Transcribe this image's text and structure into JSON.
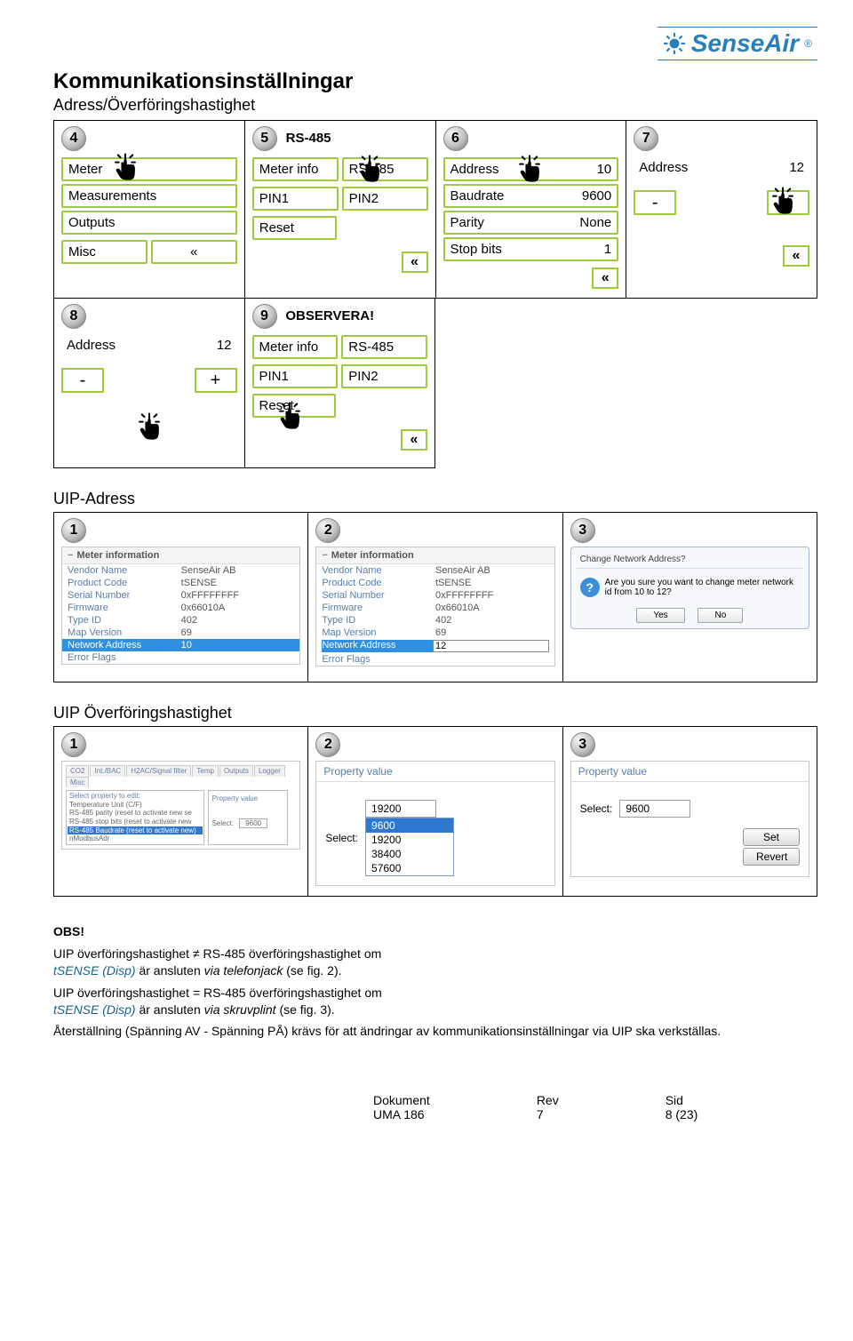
{
  "brand": {
    "name": "SenseAir",
    "reg": "®"
  },
  "title": "Kommunikationsinställningar",
  "subtitle": "Adress/Överföringshastighet",
  "panels_r1": {
    "p4": {
      "badge": "4",
      "rows": [
        "Meter",
        "Measurements",
        "Outputs"
      ],
      "last": {
        "left": "Misc",
        "right": "«"
      }
    },
    "p5": {
      "badge": "5",
      "badge_label": "RS-485",
      "pairs": [
        [
          "Meter info",
          "RS-485"
        ],
        [
          "PIN1",
          "PIN2"
        ]
      ],
      "single": "Reset",
      "back": "«"
    },
    "p6": {
      "badge": "6",
      "rows": [
        [
          "Address",
          "10"
        ],
        [
          "Baudrate",
          "9600"
        ],
        [
          "Parity",
          "None"
        ],
        [
          "Stop bits",
          "1"
        ]
      ],
      "back": "«"
    },
    "p7": {
      "badge": "7",
      "rows": [
        [
          "Address",
          "12"
        ]
      ],
      "adj": [
        "-",
        "+"
      ],
      "back": "«"
    }
  },
  "panels_r2": {
    "p8": {
      "badge": "8",
      "rows": [
        [
          "Address",
          "12"
        ]
      ],
      "adj": [
        "-",
        "+"
      ]
    },
    "p9": {
      "badge": "9",
      "badge_label": "OBSERVERA!",
      "pairs": [
        [
          "Meter info",
          "RS-485"
        ],
        [
          "PIN1",
          "PIN2"
        ]
      ],
      "single": "Reset",
      "back": "«"
    }
  },
  "uip_address": {
    "title": "UIP-Adress",
    "cells": {
      "c1": {
        "badge": "1",
        "meter_title": "Meter information",
        "rows": [
          [
            "Vendor Name",
            "SenseAir AB"
          ],
          [
            "Product Code",
            "tSENSE"
          ],
          [
            "Serial Number",
            "0xFFFFFFFF"
          ],
          [
            "Firmware",
            "0x66010A"
          ],
          [
            "Type ID",
            "402"
          ],
          [
            "Map Version",
            "69"
          ],
          [
            "Network Address",
            "10"
          ],
          [
            "Error Flags",
            ""
          ]
        ],
        "highlight_index": 6
      },
      "c2": {
        "badge": "2",
        "meter_title": "Meter information",
        "rows": [
          [
            "Vendor Name",
            "SenseAir AB"
          ],
          [
            "Product Code",
            "tSENSE"
          ],
          [
            "Serial Number",
            "0xFFFFFFFF"
          ],
          [
            "Firmware",
            "0x66010A"
          ],
          [
            "Type ID",
            "402"
          ],
          [
            "Map Version",
            "69"
          ],
          [
            "Network Address",
            "12"
          ],
          [
            "Error Flags",
            ""
          ]
        ],
        "highlight_index": 6,
        "edit_mode": true
      },
      "c3": {
        "badge": "3",
        "dialog": {
          "title": "Change Network Address?",
          "msg": "Are you sure you want to change meter network id from 10 to 12?",
          "yes": "Yes",
          "no": "No"
        }
      }
    }
  },
  "uip_rate": {
    "title": "UIP Överföringshastighet",
    "cells": {
      "c1": {
        "badge": "1",
        "tabs": [
          "CO2",
          "Int./BAC",
          "H2AC/Signal filter",
          "Temp",
          "Outputs",
          "Logger",
          "Misc"
        ],
        "list_label": "Select property to edit:",
        "list": [
          "Temperature Unit (C/F)",
          "RS-485 parity (reset to activate new se",
          "RS-485 stop bits (reset to activate new",
          "RS-485 Baudrate (reset to activate new)",
          "nModbusAdr"
        ],
        "list_hl": 3,
        "pv": "Property value",
        "select_label": "Select:",
        "select_value": "9600"
      },
      "c2": {
        "badge": "2",
        "pv": "Property value",
        "select_label": "Select:",
        "select_value": "19200",
        "options": [
          "9600",
          "19200",
          "38400",
          "57600"
        ],
        "hl": 0
      },
      "c3": {
        "badge": "3",
        "pv": "Property value",
        "select_label": "Select:",
        "select_value": "9600",
        "set": "Set",
        "revert": "Revert"
      }
    }
  },
  "text": {
    "obs": "OBS!",
    "l1a": "UIP överföringshastighet ≠ RS-485 överföringshastighet om",
    "l1b_prod": "tSENSE (Disp)",
    "l1c": " är ansluten ",
    "l1d": "via telefonjack",
    "l1e": " (se fig. 2).",
    "l2a": "UIP överföringshastighet = RS-485 överföringshastighet om",
    "l2b_prod": "tSENSE (Disp)",
    "l2c": " är ansluten ",
    "l2d": "via skruvplint",
    "l2e": " (se fig. 3).",
    "l3": "Återställning (Spänning AV - Spänning PÅ) krävs för att ändringar av kommunikationsinställningar via UIP ska verkställas."
  },
  "footer": {
    "c1l": "Dokument",
    "c1v": "UMA 186",
    "c2l": "Rev",
    "c2v": "7",
    "c3l": "Sid",
    "c3v": "8 (23)"
  }
}
